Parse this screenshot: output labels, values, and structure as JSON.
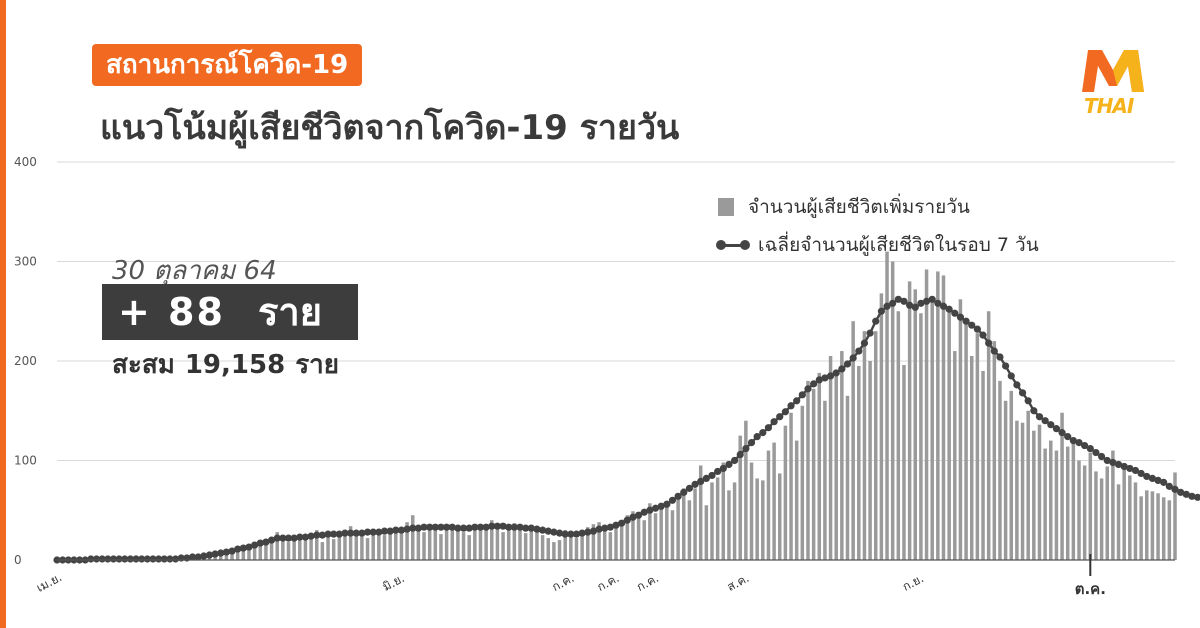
{
  "header": {
    "badge": "สถานการณ์โควิด-19",
    "title": "แนวโน้มผู้เสียชีวิตจากโควิด-19 รายวัน"
  },
  "logo": {
    "brand_text": "THAI",
    "colors": {
      "orange": "#f26a21",
      "yellow": "#f5b21b"
    }
  },
  "summary": {
    "date": "30 ตุลาคม 64",
    "plus_sign": "+",
    "new_deaths": "88",
    "unit": "ราย",
    "cumulative_label": "สะสม",
    "cumulative_value": "19,158",
    "cumulative_unit": "ราย"
  },
  "legend": {
    "bars": "จำนวนผู้เสียชีวิตเพิ่มรายวัน",
    "line": "เฉลี่ยจำนวนผู้เสียชีวิตในรอบ 7 วัน"
  },
  "colors": {
    "accent": "#f26a21",
    "bar": "#9a9a9a",
    "line": "#444444",
    "grid": "#d9d9d9"
  },
  "chart_data": {
    "type": "bar",
    "title": "แนวโน้มผู้เสียชีวิตจากโควิด-19 รายวัน",
    "xlabel": "",
    "ylabel": "",
    "ylim": [
      0,
      400
    ],
    "yticks": [
      0,
      100,
      200,
      300,
      400
    ],
    "grid": true,
    "legend_position": "top-right",
    "x_tick_labels": [
      {
        "label": "เม.ย.",
        "day": 0
      },
      {
        "label": "มิ.ย.",
        "day": 61
      },
      {
        "label": "ก.ค.",
        "day": 91
      },
      {
        "label": "ก.ค.",
        "day": 99
      },
      {
        "label": "ก.ค.",
        "day": 106
      },
      {
        "label": "ส.ค.",
        "day": 122
      },
      {
        "label": "ก.ย.",
        "day": 153
      },
      {
        "label": "ต.ค.",
        "day": 183
      }
    ],
    "series": [
      {
        "name": "จำนวนผู้เสียชีวิตเพิ่มรายวัน",
        "type": "bar",
        "values": [
          0,
          0,
          1,
          0,
          1,
          0,
          0,
          2,
          0,
          1,
          1,
          0,
          0,
          0,
          1,
          0,
          0,
          1,
          0,
          2,
          1,
          2,
          3,
          2,
          4,
          5,
          3,
          6,
          8,
          7,
          10,
          12,
          8,
          15,
          14,
          17,
          18,
          20,
          22,
          28,
          25,
          18,
          24,
          22,
          20,
          26,
          30,
          18,
          23,
          21,
          25,
          27,
          34,
          26,
          24,
          22,
          30,
          28,
          25,
          27,
          32,
          29,
          38,
          45,
          31,
          28,
          33,
          35,
          26,
          30,
          34,
          32,
          28,
          25,
          35,
          31,
          33,
          40,
          36,
          28,
          33,
          37,
          31,
          27,
          35,
          30,
          25,
          22,
          18,
          20,
          30,
          28,
          22,
          26,
          33,
          36,
          38,
          30,
          28,
          34,
          37,
          45,
          49,
          42,
          40,
          57,
          47,
          53,
          59,
          50,
          65,
          72,
          60,
          72,
          95,
          55,
          78,
          83,
          98,
          70,
          78,
          125,
          140,
          98,
          82,
          80,
          110,
          118,
          87,
          135,
          148,
          120,
          155,
          180,
          172,
          188,
          160,
          205,
          185,
          210,
          165,
          240,
          195,
          230,
          200,
          230,
          268,
          310,
          300,
          250,
          196,
          280,
          272,
          248,
          292,
          262,
          290,
          286,
          250,
          210,
          262,
          238,
          205,
          228,
          190,
          250,
          220,
          180,
          160,
          170,
          140,
          138,
          150,
          130,
          136,
          112,
          120,
          110,
          148,
          114,
          120,
          100,
          95,
          108,
          89,
          82,
          94,
          110,
          76,
          92,
          85,
          78,
          64,
          70,
          69,
          67,
          63,
          60,
          88
        ]
      },
      {
        "name": "เฉลี่ยจำนวนผู้เสียชีวิตในรอบ 7 วัน",
        "type": "line",
        "values": [
          0,
          0,
          0,
          0,
          0,
          0,
          1,
          1,
          1,
          1,
          1,
          1,
          1,
          1,
          1,
          1,
          1,
          1,
          1,
          1,
          1,
          1,
          2,
          2,
          3,
          3,
          4,
          5,
          6,
          7,
          8,
          9,
          11,
          12,
          13,
          15,
          17,
          18,
          20,
          22,
          22,
          22,
          22,
          23,
          23,
          24,
          25,
          25,
          26,
          26,
          26,
          27,
          27,
          27,
          27,
          28,
          28,
          28,
          29,
          29,
          30,
          30,
          31,
          32,
          32,
          33,
          33,
          33,
          33,
          33,
          33,
          32,
          32,
          32,
          33,
          33,
          33,
          34,
          34,
          34,
          33,
          33,
          33,
          32,
          32,
          31,
          30,
          29,
          28,
          27,
          26,
          26,
          26,
          27,
          28,
          29,
          31,
          32,
          33,
          35,
          37,
          40,
          43,
          45,
          48,
          50,
          52,
          54,
          56,
          60,
          64,
          68,
          72,
          76,
          79,
          82,
          85,
          89,
          92,
          96,
          100,
          106,
          112,
          118,
          124,
          128,
          133,
          139,
          144,
          149,
          155,
          160,
          166,
          172,
          177,
          181,
          183,
          185,
          188,
          192,
          197,
          203,
          210,
          218,
          228,
          240,
          250,
          255,
          258,
          262,
          260,
          256,
          254,
          258,
          260,
          262,
          258,
          255,
          252,
          248,
          244,
          240,
          236,
          232,
          226,
          218,
          210,
          204,
          195,
          185,
          176,
          168,
          160,
          150,
          144,
          140,
          136,
          132,
          128,
          124,
          120,
          118,
          115,
          112,
          108,
          104,
          100,
          98,
          96,
          94,
          92,
          90,
          87,
          84,
          82,
          80,
          78,
          74,
          71,
          68,
          66,
          64,
          63,
          62
        ]
      }
    ]
  }
}
